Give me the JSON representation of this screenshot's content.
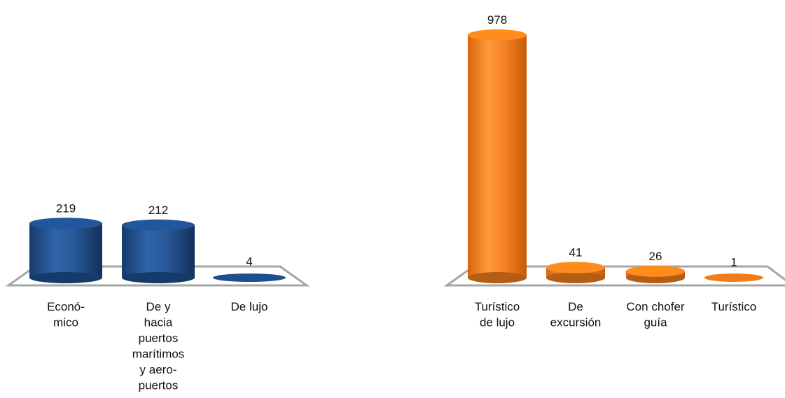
{
  "chart_data": [
    {
      "type": "bar",
      "categories": [
        [
          "Econó-",
          "mico"
        ],
        [
          "De y",
          "hacia",
          "puertos",
          "marítimos",
          "y aero-",
          "puertos"
        ],
        [
          "De lujo"
        ]
      ],
      "values": [
        219,
        212,
        4
      ],
      "color": "#1f4e8c",
      "ylim": [
        0,
        978
      ]
    },
    {
      "type": "bar",
      "categories": [
        [
          "Turístico",
          "de lujo"
        ],
        [
          "De",
          "excursión"
        ],
        [
          "Con chofer",
          "guía"
        ],
        [
          "Turístico"
        ]
      ],
      "values": [
        978,
        41,
        26,
        1
      ],
      "color": "#f07d1a",
      "ylim": [
        0,
        978
      ]
    }
  ]
}
